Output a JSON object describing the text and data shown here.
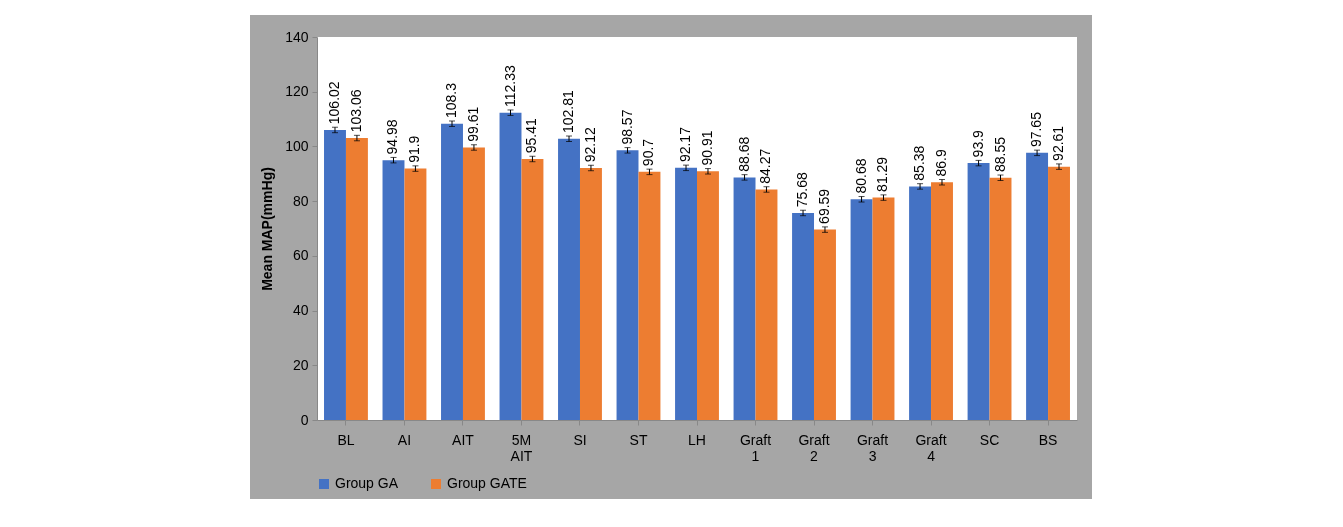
{
  "chart_data": {
    "type": "bar",
    "ylabel": "Mean MAP(mmHg)",
    "categories": [
      "BL",
      "AI",
      "AIT",
      "5M AIT",
      "SI",
      "ST",
      "LH",
      "Graft 1",
      "Graft 2",
      "Graft 3",
      "Graft 4",
      "SC",
      "BS"
    ],
    "series": [
      {
        "name": "Group GA",
        "color": "#4472c4",
        "values": [
          106.02,
          94.98,
          108.3,
          112.33,
          102.81,
          98.57,
          92.17,
          88.68,
          75.68,
          80.68,
          85.38,
          93.9,
          97.65
        ],
        "errors": [
          1,
          1,
          1,
          1,
          1,
          1,
          1,
          1,
          1,
          1,
          1,
          1,
          1
        ]
      },
      {
        "name": "Group GATE",
        "color": "#ed7d31",
        "values": [
          103.06,
          91.9,
          99.61,
          95.41,
          92.12,
          90.7,
          90.91,
          84.27,
          69.59,
          81.29,
          86.9,
          88.55,
          92.61
        ],
        "errors": [
          1,
          1,
          1,
          1,
          1,
          1,
          1,
          1,
          1,
          1,
          1,
          1,
          1
        ]
      }
    ],
    "ylim": [
      0,
      140
    ],
    "yticks": [
      0,
      20,
      40,
      60,
      80,
      100,
      120,
      140
    ],
    "data_labels": true,
    "legend": "bottom",
    "grid": false
  }
}
